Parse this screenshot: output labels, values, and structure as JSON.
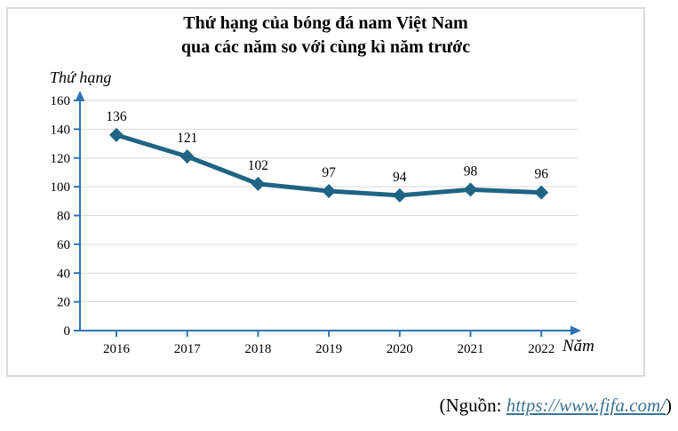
{
  "title": {
    "line1": "Thứ hạng của bóng đá nam Việt Nam",
    "line2": "qua các năm so với cùng kì năm trước"
  },
  "source": {
    "prefix": "(Nguồn: ",
    "link_text": "https://www.fifa.com/",
    "suffix": ")"
  },
  "colors": {
    "line": "#1F6484",
    "axis": "#2E74B5",
    "gridline": "#D9D9D9",
    "frame_border": "#DADADA",
    "link": "#3E7390",
    "text": "#000000"
  },
  "chart_data": {
    "type": "line",
    "title": "Thứ hạng của bóng đá nam Việt Nam qua các năm so với cùng kì năm trước",
    "xlabel": "Năm",
    "ylabel": "Thứ hạng",
    "categories": [
      "2016",
      "2017",
      "2018",
      "2019",
      "2020",
      "2021",
      "2022"
    ],
    "values": [
      136,
      121,
      102,
      97,
      94,
      98,
      96
    ],
    "ylim": [
      0,
      160
    ],
    "y_ticks": [
      0,
      20,
      40,
      60,
      80,
      100,
      120,
      140,
      160
    ],
    "grid": "horizontal",
    "marker": "diamond",
    "data_labels": true,
    "legend": "none"
  }
}
